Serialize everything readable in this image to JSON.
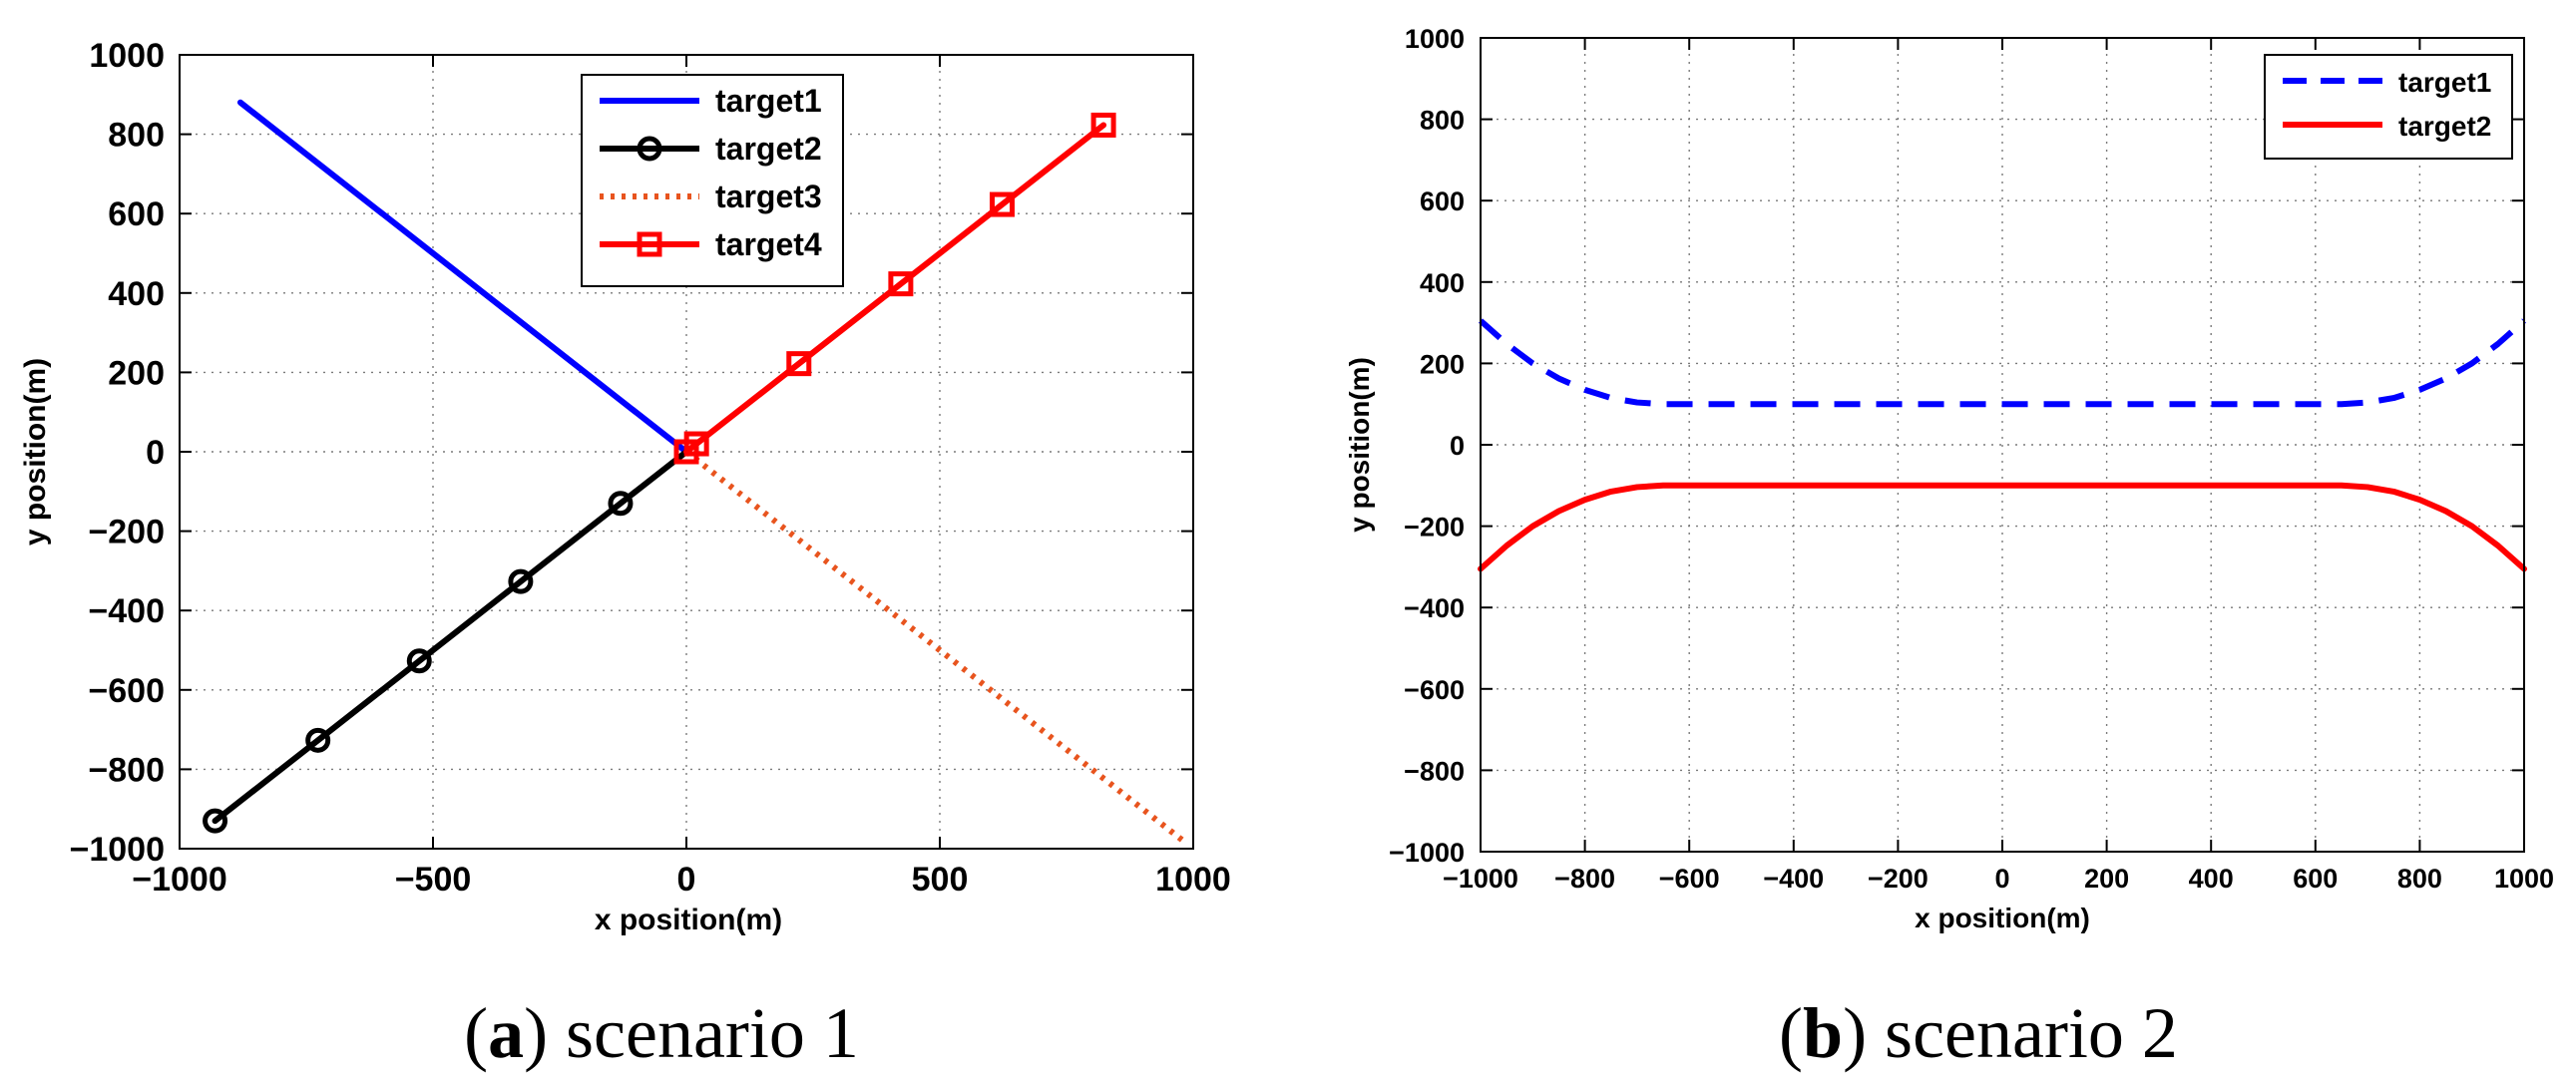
{
  "chart_data": [
    {
      "type": "line",
      "caption_letter": "a",
      "caption_text": ") scenario 1",
      "caption_open": "(",
      "title": "",
      "xlabel": "x position(m)",
      "ylabel": "y position(m)",
      "xlim": [
        -1000,
        1000
      ],
      "ylim": [
        -1000,
        1000
      ],
      "xticks": [
        -1000,
        -500,
        0,
        500,
        1000
      ],
      "yticks": [
        -1000,
        -800,
        -600,
        -400,
        -200,
        0,
        200,
        400,
        600,
        800,
        1000
      ],
      "xtick_labels": [
        "−1000",
        "−500",
        "0",
        "500",
        "1000"
      ],
      "ytick_labels": [
        "−1000",
        "−800",
        "−600",
        "−400",
        "−200",
        "0",
        "200",
        "400",
        "600",
        "800",
        "1000"
      ],
      "grid": true,
      "legend_position": "top-center",
      "series": [
        {
          "name": "target1",
          "color": "#0000ff",
          "style": "solid",
          "marker": "none",
          "x": [
            -880,
            0
          ],
          "y": [
            880,
            0
          ]
        },
        {
          "name": "target2",
          "color": "#000000",
          "style": "solid",
          "marker": "circle",
          "x": [
            -930,
            -727,
            -527,
            -327,
            -130,
            0
          ],
          "y": [
            -930,
            -727,
            -527,
            -327,
            -130,
            0
          ],
          "marker_x": [
            -930,
            -727,
            -527,
            -327,
            -130
          ],
          "marker_y": [
            -930,
            -727,
            -527,
            -327,
            -130
          ]
        },
        {
          "name": "target3",
          "color": "#e8541e",
          "style": "dotted",
          "marker": "none",
          "x": [
            0,
            980
          ],
          "y": [
            0,
            -980
          ]
        },
        {
          "name": "target4",
          "color": "#ff0000",
          "style": "solid",
          "marker": "square",
          "x": [
            0,
            20,
            222,
            423,
            623,
            823
          ],
          "y": [
            0,
            20,
            222,
            423,
            623,
            823
          ],
          "marker_x": [
            0,
            20,
            222,
            423,
            623,
            823
          ],
          "marker_y": [
            0,
            20,
            222,
            423,
            623,
            823
          ]
        }
      ]
    },
    {
      "type": "line",
      "caption_letter": "b",
      "caption_text": ") scenario 2",
      "caption_open": "(",
      "title": "",
      "xlabel": "x position(m)",
      "ylabel": "y position(m)",
      "xlim": [
        -1000,
        1000
      ],
      "ylim": [
        -1000,
        1000
      ],
      "xticks": [
        -1000,
        -800,
        -600,
        -400,
        -200,
        0,
        200,
        400,
        600,
        800,
        1000
      ],
      "yticks": [
        -1000,
        -800,
        -600,
        -400,
        -200,
        0,
        200,
        400,
        600,
        800,
        1000
      ],
      "xtick_labels": [
        "−1000",
        "−800",
        "−600",
        "−400",
        "−200",
        "0",
        "200",
        "400",
        "600",
        "800",
        "1000"
      ],
      "ytick_labels": [
        "−1000",
        "−800",
        "−600",
        "−400",
        "−200",
        "0",
        "200",
        "400",
        "600",
        "800",
        "1000"
      ],
      "grid": true,
      "legend_position": "top-right",
      "series": [
        {
          "name": "target1",
          "color": "#0000ff",
          "style": "dashed",
          "marker": "none",
          "x": [
            -1000,
            -950,
            -900,
            -850,
            -800,
            -750,
            -700,
            -650,
            650,
            700,
            750,
            800,
            850,
            900,
            950,
            1000
          ],
          "y": [
            305,
            248,
            200,
            163,
            135,
            115,
            104,
            100,
            100,
            104,
            115,
            135,
            163,
            200,
            248,
            305
          ]
        },
        {
          "name": "target2",
          "color": "#ff0000",
          "style": "solid",
          "marker": "none",
          "x": [
            -1000,
            -950,
            -900,
            -850,
            -800,
            -750,
            -700,
            -650,
            650,
            700,
            750,
            800,
            850,
            900,
            950,
            1000
          ],
          "y": [
            -305,
            -248,
            -200,
            -163,
            -135,
            -115,
            -104,
            -100,
            -100,
            -104,
            -115,
            -135,
            -163,
            -200,
            -248,
            -305
          ]
        }
      ]
    }
  ]
}
